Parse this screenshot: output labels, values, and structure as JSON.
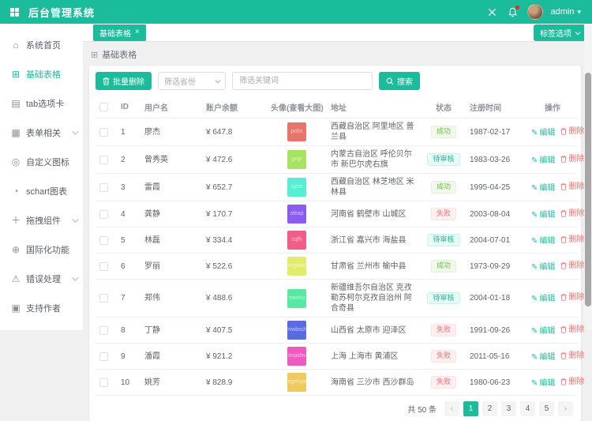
{
  "header": {
    "title": "后台管理系统",
    "username": "admin",
    "caret": "▾"
  },
  "sidebar": {
    "items": [
      {
        "key": "home",
        "label": "系统首页",
        "glyph": "⌂",
        "active": false,
        "chevron": false
      },
      {
        "key": "basic-table",
        "label": "基础表格",
        "glyph": "⊞",
        "active": true,
        "chevron": false
      },
      {
        "key": "tabs",
        "label": "tab选项卡",
        "glyph": "▤",
        "active": false,
        "chevron": false
      },
      {
        "key": "form",
        "label": "表单相关",
        "glyph": "▦",
        "active": false,
        "chevron": true
      },
      {
        "key": "custom-icon",
        "label": "自定义图标",
        "glyph": "◎",
        "active": false,
        "chevron": false
      },
      {
        "key": "schart",
        "label": "schart图表",
        "glyph": "◔",
        "active": false,
        "chevron": false
      },
      {
        "key": "drag",
        "label": "拖拽组件",
        "glyph": "＋",
        "active": false,
        "chevron": true
      },
      {
        "key": "i18n",
        "label": "国际化功能",
        "glyph": "⊕",
        "active": false,
        "chevron": false
      },
      {
        "key": "error",
        "label": "错误处理",
        "glyph": "⚠",
        "active": false,
        "chevron": true
      },
      {
        "key": "donate",
        "label": "支持作者",
        "glyph": "▣",
        "active": false,
        "chevron": false
      }
    ]
  },
  "tabs": {
    "active_label": "基础表格",
    "close_glyph": "×",
    "options_button": "标签选项"
  },
  "breadcrumb": {
    "icon_glyph": "⊞",
    "label": "基础表格"
  },
  "toolbar": {
    "batch_delete_label": "批量删除",
    "province_placeholder": "筛选省份",
    "keyword_placeholder": "筛选关键词",
    "search_label": "搜索"
  },
  "table": {
    "headers": [
      "ID",
      "用户名",
      "账户余额",
      "头像(查看大图)",
      "地址",
      "状态",
      "注册时间",
      "操作"
    ],
    "edit_label": "编辑",
    "edit_icon_glyph": "✎",
    "delete_label": "删除",
    "rows": [
      {
        "id": "1",
        "name": "廖杰",
        "balance": "¥ 647.8",
        "avatar_color": "#e8746c",
        "avatar_text": "pcbx",
        "address": "西藏自治区 阿里地区 普兰县",
        "status": "成功",
        "status_type": "success",
        "date": "1987-02-17"
      },
      {
        "id": "2",
        "name": "曾秀英",
        "balance": "¥ 472.6",
        "avatar_color": "#a5e360",
        "avatar_text": "gxgr",
        "address": "内蒙古自治区 呼伦贝尔市 新巴尔虎右旗",
        "status": "待审核",
        "status_type": "pending",
        "date": "1983-03-26"
      },
      {
        "id": "3",
        "name": "雷霞",
        "balance": "¥ 652.7",
        "avatar_color": "#55f0d3",
        "avatar_text": "njcm",
        "address": "西藏自治区 林芝地区 米林县",
        "status": "成功",
        "status_type": "success",
        "date": "1995-04-25"
      },
      {
        "id": "4",
        "name": "龚静",
        "balance": "¥ 170.7",
        "avatar_color": "#8b5cf0",
        "avatar_text": "sfeap",
        "address": "河南省 鹤壁市 山城区",
        "status": "失败",
        "status_type": "fail",
        "date": "2003-08-04"
      },
      {
        "id": "5",
        "name": "林磊",
        "balance": "¥ 334.4",
        "avatar_color": "#f25e85",
        "avatar_text": "cqfh",
        "address": "浙江省 嘉兴市 海盐县",
        "status": "待审核",
        "status_type": "pending",
        "date": "2004-07-01"
      },
      {
        "id": "6",
        "name": "罗丽",
        "balance": "¥ 522.6",
        "avatar_color": "#e2ec6c",
        "avatar_text": "xsydsn",
        "address": "甘肃省 兰州市 榆中县",
        "status": "成功",
        "status_type": "success",
        "date": "1973-09-29"
      },
      {
        "id": "7",
        "name": "郑伟",
        "balance": "¥ 488.6",
        "avatar_color": "#58e8a2",
        "avatar_text": "mwmu",
        "address": "新疆维吾尔自治区 克孜勒苏柯尔克孜自治州 阿合奇县",
        "status": "待审核",
        "status_type": "pending",
        "date": "2004-01-18"
      },
      {
        "id": "8",
        "name": "丁静",
        "balance": "¥ 407.5",
        "avatar_color": "#5a6ae3",
        "avatar_text": "rriwbsch",
        "address": "山西省 太原市 迎泽区",
        "status": "失败",
        "status_type": "fail",
        "date": "1991-09-26"
      },
      {
        "id": "9",
        "name": "潘霞",
        "balance": "¥ 921.2",
        "avatar_color": "#f158c0",
        "avatar_text": "impidw",
        "address": "上海 上海市 黄浦区",
        "status": "失败",
        "status_type": "fail",
        "date": "2011-05-16"
      },
      {
        "id": "10",
        "name": "姚芳",
        "balance": "¥ 828.9",
        "avatar_color": "#f0ca5e",
        "avatar_text": "mgehyar",
        "address": "海南省 三沙市 西沙群岛",
        "status": "失败",
        "status_type": "fail",
        "date": "1980-06-23"
      }
    ]
  },
  "pagination": {
    "total_label": "共 50 条",
    "prev_glyph": "‹",
    "next_glyph": "›",
    "pages": [
      "1",
      "2",
      "3",
      "4",
      "5"
    ],
    "current": "1"
  }
}
